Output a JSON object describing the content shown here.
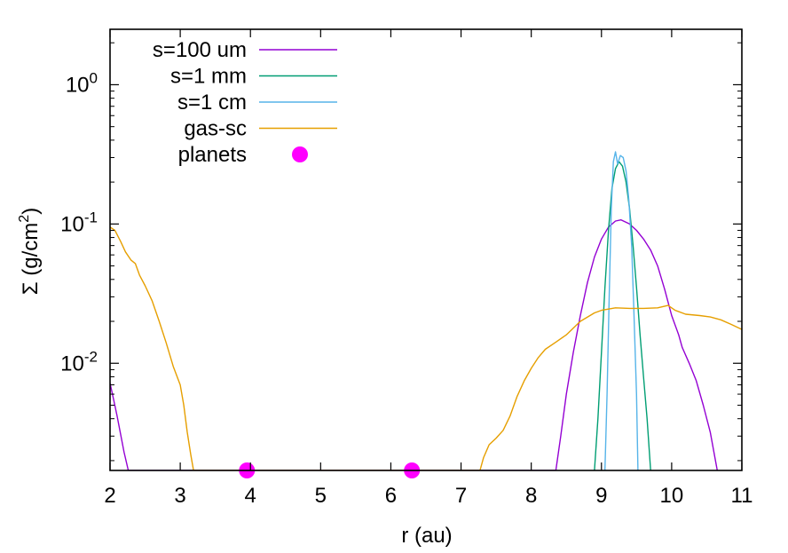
{
  "chart_data": {
    "type": "line",
    "xlabel": "r (au)",
    "ylabel": "Σ (g/cm²)",
    "ylabel_parts": [
      "Σ (g/cm",
      "2",
      ")"
    ],
    "xlim": [
      2,
      11
    ],
    "ylim": [
      0.0017,
      2.5
    ],
    "yscale": "log",
    "grid": false,
    "legend_position": "top-left",
    "x_ticks": [
      2,
      3,
      4,
      5,
      6,
      7,
      8,
      9,
      10,
      11
    ],
    "x_tick_labels": [
      "2",
      "3",
      "4",
      "5",
      "6",
      "7",
      "8",
      "9",
      "10",
      "11"
    ],
    "y_major_ticks": [
      {
        "value": 1,
        "base": "10",
        "exp": "0"
      },
      {
        "value": 0.1,
        "base": "10",
        "exp": "-1"
      },
      {
        "value": 0.01,
        "base": "10",
        "exp": "-2"
      }
    ],
    "series": [
      {
        "name": "s=100 um",
        "color": "#9400d3",
        "points": [
          [
            2.0,
            0.0072
          ],
          [
            2.05,
            0.0055
          ],
          [
            2.1,
            0.0042
          ],
          [
            2.15,
            0.0031
          ],
          [
            2.2,
            0.0023
          ],
          [
            2.26,
            0.0017
          ],
          [
            8.35,
            0.0017
          ],
          [
            8.42,
            0.003
          ],
          [
            8.5,
            0.006
          ],
          [
            8.6,
            0.012
          ],
          [
            8.7,
            0.022
          ],
          [
            8.8,
            0.038
          ],
          [
            8.9,
            0.058
          ],
          [
            9.0,
            0.078
          ],
          [
            9.1,
            0.095
          ],
          [
            9.2,
            0.105
          ],
          [
            9.28,
            0.107
          ],
          [
            9.4,
            0.1
          ],
          [
            9.5,
            0.09
          ],
          [
            9.6,
            0.078
          ],
          [
            9.7,
            0.065
          ],
          [
            9.8,
            0.05
          ],
          [
            9.9,
            0.034
          ],
          [
            10.0,
            0.022
          ],
          [
            10.1,
            0.016
          ],
          [
            10.15,
            0.013
          ],
          [
            10.25,
            0.01
          ],
          [
            10.35,
            0.0075
          ],
          [
            10.45,
            0.005
          ],
          [
            10.55,
            0.0032
          ],
          [
            10.65,
            0.0017
          ]
        ]
      },
      {
        "name": "s=1 mm",
        "color": "#009e73",
        "points": [
          [
            8.9,
            0.0017
          ],
          [
            8.95,
            0.004
          ],
          [
            9.0,
            0.012
          ],
          [
            9.05,
            0.035
          ],
          [
            9.1,
            0.09
          ],
          [
            9.15,
            0.18
          ],
          [
            9.2,
            0.25
          ],
          [
            9.25,
            0.28
          ],
          [
            9.3,
            0.26
          ],
          [
            9.35,
            0.2
          ],
          [
            9.4,
            0.13
          ],
          [
            9.45,
            0.07
          ],
          [
            9.5,
            0.035
          ],
          [
            9.55,
            0.016
          ],
          [
            9.6,
            0.008
          ],
          [
            9.65,
            0.004
          ],
          [
            9.7,
            0.0017
          ]
        ]
      },
      {
        "name": "s=1 cm",
        "color": "#56b4e9",
        "points": [
          [
            9.05,
            0.0017
          ],
          [
            9.08,
            0.006
          ],
          [
            9.11,
            0.03
          ],
          [
            9.14,
            0.13
          ],
          [
            9.17,
            0.28
          ],
          [
            9.2,
            0.33
          ],
          [
            9.23,
            0.27
          ],
          [
            9.27,
            0.31
          ],
          [
            9.31,
            0.3
          ],
          [
            9.35,
            0.24
          ],
          [
            9.39,
            0.15
          ],
          [
            9.43,
            0.07
          ],
          [
            9.46,
            0.025
          ],
          [
            9.5,
            0.006
          ],
          [
            9.52,
            0.0017
          ]
        ]
      },
      {
        "name": "gas-sc",
        "color": "#e69f00",
        "points": [
          [
            2.0,
            0.095
          ],
          [
            2.07,
            0.09
          ],
          [
            2.15,
            0.075
          ],
          [
            2.22,
            0.063
          ],
          [
            2.3,
            0.055
          ],
          [
            2.36,
            0.052
          ],
          [
            2.42,
            0.043
          ],
          [
            2.5,
            0.036
          ],
          [
            2.6,
            0.028
          ],
          [
            2.7,
            0.02
          ],
          [
            2.8,
            0.014
          ],
          [
            2.9,
            0.0095
          ],
          [
            3.0,
            0.007
          ],
          [
            3.05,
            0.005
          ],
          [
            3.1,
            0.0032
          ],
          [
            3.15,
            0.0022
          ],
          [
            3.19,
            0.0017
          ],
          [
            7.27,
            0.0017
          ],
          [
            7.32,
            0.0021
          ],
          [
            7.4,
            0.0026
          ],
          [
            7.5,
            0.0029
          ],
          [
            7.6,
            0.0033
          ],
          [
            7.7,
            0.0042
          ],
          [
            7.8,
            0.0058
          ],
          [
            7.9,
            0.0075
          ],
          [
            8.0,
            0.0092
          ],
          [
            8.1,
            0.011
          ],
          [
            8.2,
            0.0126
          ],
          [
            8.35,
            0.0142
          ],
          [
            8.5,
            0.016
          ],
          [
            8.7,
            0.02
          ],
          [
            8.9,
            0.023
          ],
          [
            9.0,
            0.024
          ],
          [
            9.2,
            0.025
          ],
          [
            9.4,
            0.0248
          ],
          [
            9.6,
            0.0248
          ],
          [
            9.8,
            0.025
          ],
          [
            9.95,
            0.026
          ],
          [
            10.05,
            0.024
          ],
          [
            10.2,
            0.0225
          ],
          [
            10.4,
            0.022
          ],
          [
            10.55,
            0.0215
          ],
          [
            10.7,
            0.0205
          ],
          [
            10.85,
            0.019
          ],
          [
            11.0,
            0.0175
          ]
        ]
      },
      {
        "name": "planets",
        "color": "#ff00ff",
        "style": "points",
        "points": [
          [
            3.95,
            0.0017
          ],
          [
            6.3,
            0.0017
          ]
        ]
      }
    ]
  }
}
